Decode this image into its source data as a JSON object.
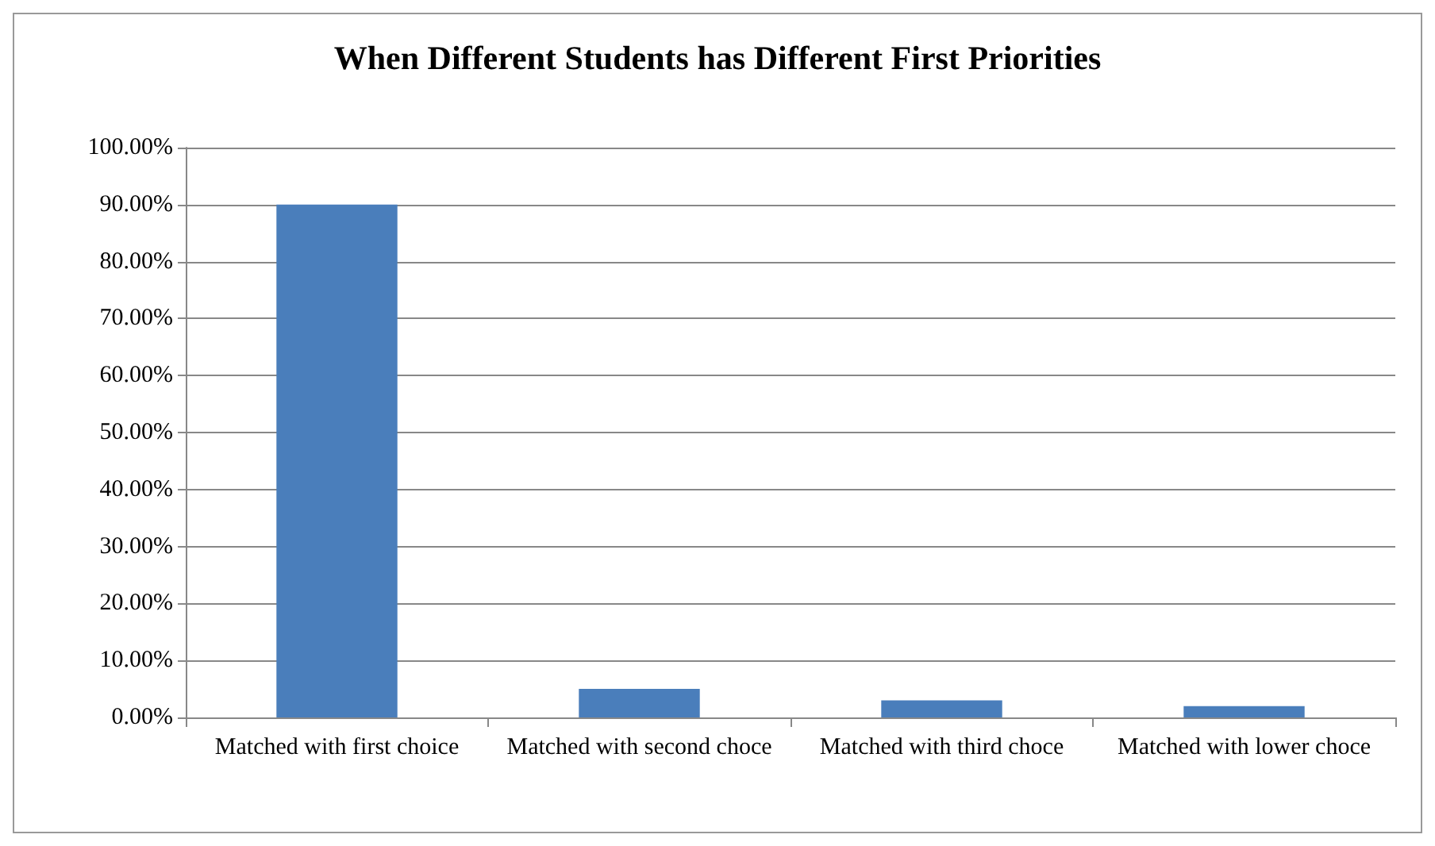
{
  "chart_data": {
    "type": "bar",
    "title": "When Different Students has Different First Priorities",
    "categories": [
      "Matched with first choice",
      "Matched with second choce",
      "Matched with third choce",
      "Matched with lower choce"
    ],
    "values": [
      90,
      5,
      3,
      2
    ],
    "color": "#4a7ebb",
    "ylim": [
      0,
      100
    ],
    "yticks": [
      {
        "value": 0,
        "label": "0.00%"
      },
      {
        "value": 10,
        "label": "10.00%"
      },
      {
        "value": 20,
        "label": "20.00%"
      },
      {
        "value": 30,
        "label": "30.00%"
      },
      {
        "value": 40,
        "label": "40.00%"
      },
      {
        "value": 50,
        "label": "50.00%"
      },
      {
        "value": 60,
        "label": "60.00%"
      },
      {
        "value": 70,
        "label": "70.00%"
      },
      {
        "value": 80,
        "label": "80.00%"
      },
      {
        "value": 90,
        "label": "90.00%"
      },
      {
        "value": 100,
        "label": "100.00%"
      }
    ],
    "grid": "y"
  }
}
